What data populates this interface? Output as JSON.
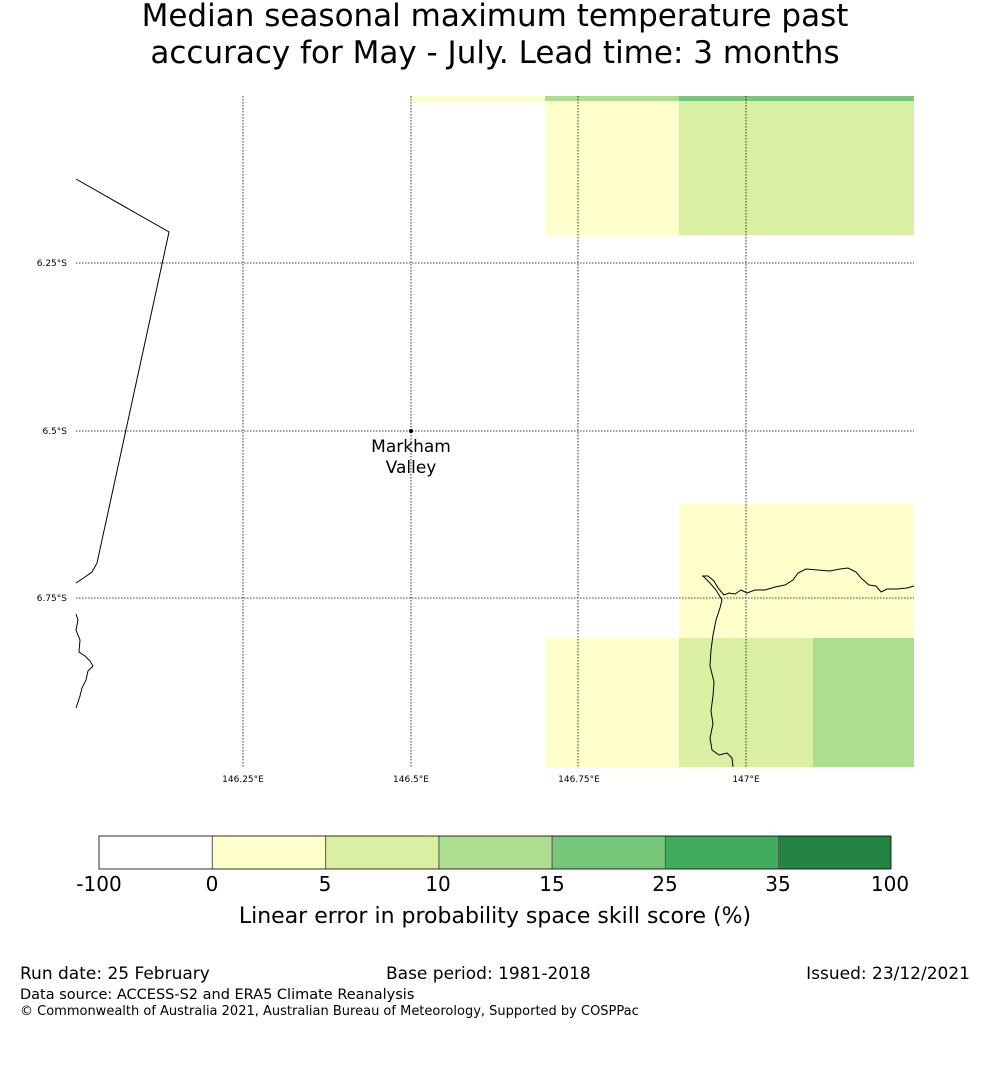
{
  "title": {
    "line1": "Median seasonal maximum temperature past",
    "line2": "accuracy for May - July. Lead time: 3 months"
  },
  "map": {
    "lat_labels": [
      "6.25°S",
      "6.5°S",
      "6.75°S"
    ],
    "lon_labels": [
      "146.25°E",
      "146.5°E",
      "146.75°E",
      "147°E"
    ],
    "place": {
      "name_line1": "Markham",
      "name_line2": "Valley",
      "lat": -6.5,
      "lon": 146.5
    }
  },
  "colorbar": {
    "ticks": [
      "-100",
      "0",
      "5",
      "10",
      "15",
      "25",
      "35",
      "100"
    ],
    "colors": [
      "#ffffff",
      "#ffffcc",
      "#d9f0a3",
      "#addd8e",
      "#78c679",
      "#41ab5d",
      "#238443"
    ],
    "label": "Linear error in probability space skill score (%)"
  },
  "footer": {
    "run_date": "Run date: 25 February",
    "base_period": "Base period: 1981-2018",
    "issued": "Issued: 23/12/2021",
    "data_source": "Data source: ACCESS-S2 and ERA5 Climate Reanalysis",
    "copyright": "© Commonwealth of Australia 2021, Australian Bureau of Meteorology, Supported by COSPPac"
  }
}
